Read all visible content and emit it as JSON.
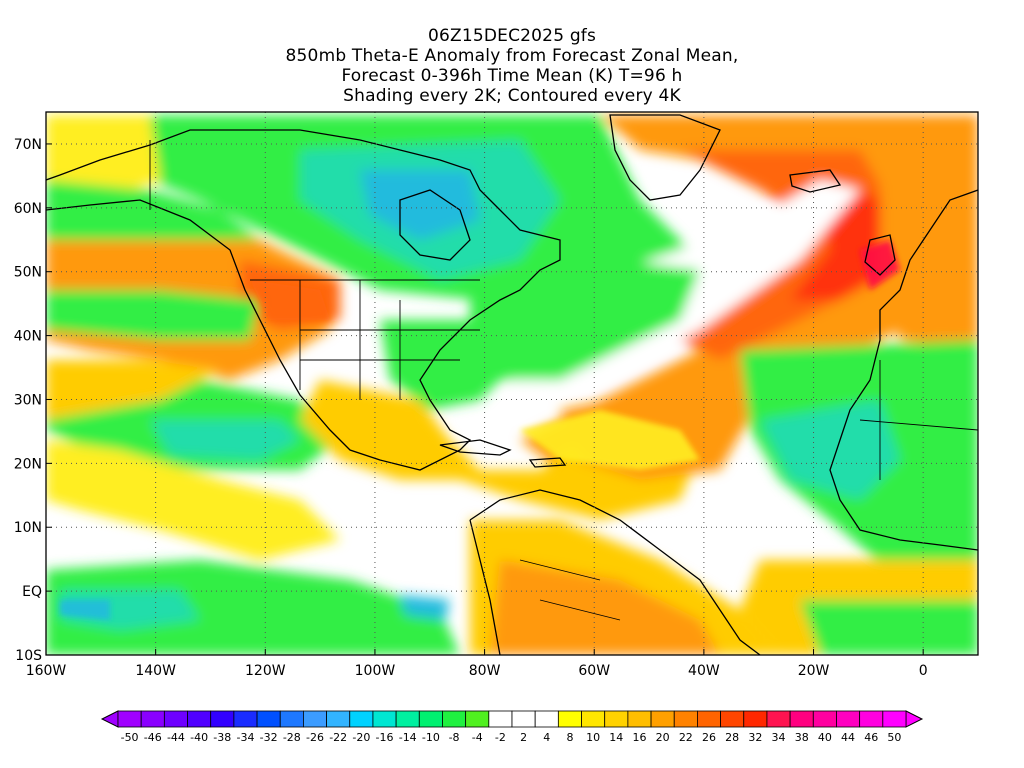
{
  "title_lines": [
    "06Z15DEC2025 gfs",
    "850mb Theta-E Anomaly from Forecast Zonal Mean,",
    "Forecast 0-396h Time Mean (K) T=96 h",
    "Shading every 2K; Contoured every 4K"
  ],
  "map": {
    "lon_range": [
      -160,
      10
    ],
    "lat_range": [
      -10,
      75
    ],
    "lon_ticks": [
      {
        "value": -160,
        "label": "160W"
      },
      {
        "value": -140,
        "label": "140W"
      },
      {
        "value": -120,
        "label": "120W"
      },
      {
        "value": -100,
        "label": "100W"
      },
      {
        "value": -80,
        "label": "80W"
      },
      {
        "value": -60,
        "label": "60W"
      },
      {
        "value": -40,
        "label": "40W"
      },
      {
        "value": -20,
        "label": "20W"
      },
      {
        "value": 0,
        "label": "0"
      }
    ],
    "lat_ticks": [
      {
        "value": 70,
        "label": "70N"
      },
      {
        "value": 60,
        "label": "60N"
      },
      {
        "value": 50,
        "label": "50N"
      },
      {
        "value": 40,
        "label": "40N"
      },
      {
        "value": 30,
        "label": "30N"
      },
      {
        "value": 20,
        "label": "20N"
      },
      {
        "value": 10,
        "label": "10N"
      },
      {
        "value": 0,
        "label": "EQ"
      },
      {
        "value": -10,
        "label": "10S"
      }
    ],
    "grid": "dotted"
  },
  "colorbar": {
    "labels": [
      "-50",
      "-46",
      "-44",
      "-40",
      "-38",
      "-34",
      "-32",
      "-28",
      "-26",
      "-22",
      "-20",
      "-16",
      "-14",
      "-10",
      "-8",
      "-4",
      "-2",
      "2",
      "4",
      "8",
      "10",
      "14",
      "16",
      "20",
      "22",
      "26",
      "28",
      "32",
      "34",
      "38",
      "40",
      "44",
      "46",
      "50"
    ],
    "colors": [
      "#a000ff",
      "#8a00ff",
      "#6e00ff",
      "#5000ff",
      "#3200ff",
      "#1a2cff",
      "#0050ff",
      "#1e78ff",
      "#3c9cff",
      "#32b4ff",
      "#00d2ff",
      "#00e6d2",
      "#00f0a0",
      "#00f070",
      "#20f040",
      "#50f020",
      "#ffffff",
      "#ffffff",
      "#ffffff",
      "#ffff00",
      "#ffe600",
      "#ffd200",
      "#ffbe00",
      "#ffa000",
      "#ff8200",
      "#ff6400",
      "#ff4600",
      "#ff2800",
      "#ff1450",
      "#ff0080",
      "#ff00a0",
      "#ff00c0",
      "#ff00e0",
      "#ff00ff"
    ],
    "unit": "K"
  },
  "colors": {
    "green": "#33ee44",
    "teal": "#22ddaa",
    "cyan": "#22bbdd",
    "yellow": "#ffee22",
    "gold": "#ffcc00",
    "orange": "#ff9911",
    "orange_red": "#ff6611",
    "red": "#ff3311"
  }
}
